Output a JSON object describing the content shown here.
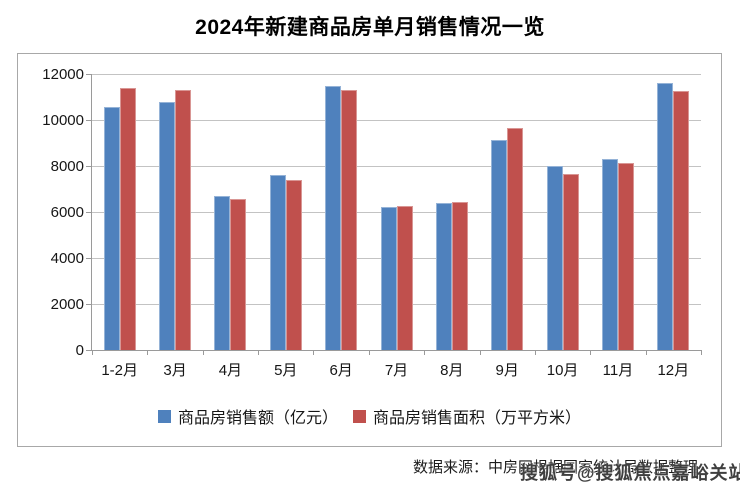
{
  "title": "2024年新建商品房单月销售情况一览",
  "source": "数据来源：中房网根据国家统计局数据整理",
  "watermark": "搜狐号@搜狐焦点嘉峪关站",
  "chart_data": {
    "type": "bar",
    "title": "2024年新建商品房单月销售情况一览",
    "categories": [
      "1-2月",
      "3月",
      "4月",
      "5月",
      "6月",
      "7月",
      "8月",
      "9月",
      "10月",
      "11月",
      "12月"
    ],
    "series": [
      {
        "name": "商品房销售额（亿元）",
        "color": "#4F81BD",
        "border_color": "#95B3D7",
        "values": [
          10550,
          10800,
          6700,
          7600,
          11500,
          6200,
          6400,
          9150,
          8000,
          8300,
          11600
        ]
      },
      {
        "name": "商品房销售面积（万平方米）",
        "color": "#C0504D",
        "border_color": "#D99694",
        "values": [
          11400,
          11300,
          6580,
          7400,
          11300,
          6250,
          6450,
          9650,
          7650,
          8150,
          11250
        ]
      }
    ],
    "xlabel": "",
    "ylabel": "",
    "ylim": [
      0,
      12000
    ],
    "ytick_step": 2000,
    "grid": true,
    "legend_position": "bottom"
  },
  "colors": {
    "frame_border": "#a8a8a8",
    "axis": "#9a9a9a",
    "gridline": "#c3c3c3",
    "watermark": "#3f3f3f"
  }
}
